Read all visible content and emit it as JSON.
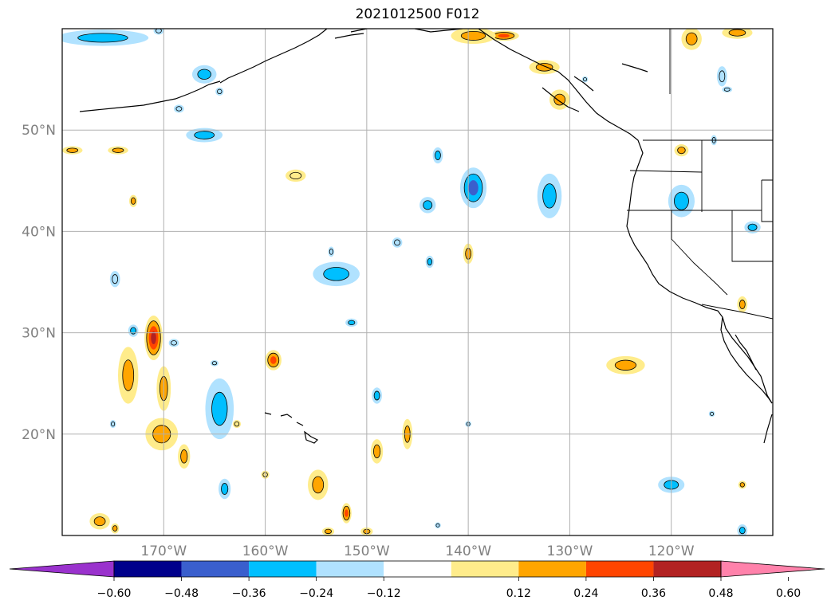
{
  "title": "2021012500 F012",
  "map": {
    "lon_range": [
      -180,
      -110
    ],
    "lat_range": [
      10,
      60
    ],
    "grid_lons": [
      -170,
      -160,
      -150,
      -140,
      -130,
      -120
    ],
    "grid_lats": [
      20,
      30,
      40,
      50
    ],
    "lat_labels": [
      "20°N",
      "30°N",
      "40°N",
      "50°N"
    ],
    "lon_labels": [
      "170°W",
      "160°W",
      "150°W",
      "140°W",
      "130°W",
      "120°W"
    ],
    "label_color": "#808080"
  },
  "colorbar": {
    "colors": [
      "#9a32cd",
      "#00008b",
      "#3a5fcd",
      "#00bfff",
      "#b0e2ff",
      "#ffffff",
      "#ffec8b",
      "#ffa500",
      "#ff4500",
      "#b22222",
      "#ff82ab"
    ],
    "tick_labels": [
      "−0.60",
      "−0.48",
      "−0.36",
      "−0.24",
      "−0.12",
      "0.12",
      "0.24",
      "0.36",
      "0.48",
      "0.60"
    ]
  },
  "features": [
    {
      "lon": -176,
      "lat": 59.1,
      "rx": 4.5,
      "ry": 0.8,
      "level": -0.3
    },
    {
      "lon": -170.5,
      "lat": 59.8,
      "rx": 0.5,
      "ry": 0.4,
      "level": -0.2
    },
    {
      "lon": -168.5,
      "lat": 52.1,
      "rx": 0.5,
      "ry": 0.4,
      "level": -0.2
    },
    {
      "lon": -166,
      "lat": 55.5,
      "rx": 1.2,
      "ry": 0.9,
      "level": -0.3
    },
    {
      "lon": -164.5,
      "lat": 53.8,
      "rx": 0.4,
      "ry": 0.4,
      "level": -0.2
    },
    {
      "lon": -166,
      "lat": 49.5,
      "rx": 1.8,
      "ry": 0.7,
      "level": -0.3
    },
    {
      "lon": -179,
      "lat": 48,
      "rx": 1.0,
      "ry": 0.4,
      "level": 0.3
    },
    {
      "lon": -174.5,
      "lat": 48,
      "rx": 1.0,
      "ry": 0.4,
      "level": 0.3
    },
    {
      "lon": -173,
      "lat": 43,
      "rx": 0.4,
      "ry": 0.6,
      "level": 0.3
    },
    {
      "lon": -157,
      "lat": 45.5,
      "rx": 1.0,
      "ry": 0.6,
      "level": 0.2
    },
    {
      "lon": -143,
      "lat": 47.5,
      "rx": 0.5,
      "ry": 0.8,
      "level": -0.3
    },
    {
      "lon": -144,
      "lat": 42.6,
      "rx": 0.8,
      "ry": 0.8,
      "level": -0.3
    },
    {
      "lon": -139.5,
      "lat": 44.3,
      "rx": 1.3,
      "ry": 2.0,
      "level": -0.4
    },
    {
      "lon": -132,
      "lat": 43.5,
      "rx": 1.2,
      "ry": 2.2,
      "level": -0.3
    },
    {
      "lon": -119,
      "lat": 43,
      "rx": 1.3,
      "ry": 1.6,
      "level": -0.35
    },
    {
      "lon": -112,
      "lat": 40.4,
      "rx": 0.8,
      "ry": 0.6,
      "level": -0.3
    },
    {
      "lon": -115,
      "lat": 55.3,
      "rx": 0.5,
      "ry": 1.0,
      "level": -0.2
    },
    {
      "lon": -114.5,
      "lat": 54,
      "rx": 0.5,
      "ry": 0.3,
      "level": -0.2
    },
    {
      "lon": -131,
      "lat": 53,
      "rx": 1.0,
      "ry": 1.0,
      "level": 0.3
    },
    {
      "lon": -119,
      "lat": 48,
      "rx": 0.7,
      "ry": 0.6,
      "level": 0.3
    },
    {
      "lon": -115.8,
      "lat": 49,
      "rx": 0.3,
      "ry": 0.5,
      "level": -0.2
    },
    {
      "lon": -136.5,
      "lat": 59.3,
      "rx": 1.5,
      "ry": 0.5,
      "level": 0.4
    },
    {
      "lon": -139.5,
      "lat": 59.3,
      "rx": 2.2,
      "ry": 0.8,
      "level": 0.3
    },
    {
      "lon": -132.5,
      "lat": 56.2,
      "rx": 1.5,
      "ry": 0.7,
      "level": 0.3
    },
    {
      "lon": -128.5,
      "lat": 55,
      "rx": 0.3,
      "ry": 0.3,
      "level": -0.2
    },
    {
      "lon": -118,
      "lat": 59,
      "rx": 1.0,
      "ry": 1.1,
      "level": 0.3
    },
    {
      "lon": -113.5,
      "lat": 59.6,
      "rx": 1.5,
      "ry": 0.6,
      "level": 0.3
    },
    {
      "lon": -153,
      "lat": 35.8,
      "rx": 2.3,
      "ry": 1.2,
      "level": -0.3
    },
    {
      "lon": -153.5,
      "lat": 38,
      "rx": 0.3,
      "ry": 0.5,
      "level": -0.2
    },
    {
      "lon": -147,
      "lat": 38.9,
      "rx": 0.5,
      "ry": 0.5,
      "level": -0.2
    },
    {
      "lon": -143.8,
      "lat": 37,
      "rx": 0.4,
      "ry": 0.6,
      "level": -0.25
    },
    {
      "lon": -140,
      "lat": 37.8,
      "rx": 0.5,
      "ry": 1.0,
      "level": 0.3
    },
    {
      "lon": -174.8,
      "lat": 35.3,
      "rx": 0.5,
      "ry": 0.8,
      "level": -0.2
    },
    {
      "lon": -173,
      "lat": 30.2,
      "rx": 0.5,
      "ry": 0.6,
      "level": -0.25
    },
    {
      "lon": -171,
      "lat": 29.5,
      "rx": 0.9,
      "ry": 2.2,
      "level": 0.55
    },
    {
      "lon": -169,
      "lat": 29,
      "rx": 0.5,
      "ry": 0.4,
      "level": -0.2
    },
    {
      "lon": -173.5,
      "lat": 25.8,
      "rx": 1.0,
      "ry": 2.8,
      "level": 0.3
    },
    {
      "lon": -170,
      "lat": 24.5,
      "rx": 0.7,
      "ry": 2.2,
      "level": 0.3
    },
    {
      "lon": -165,
      "lat": 27,
      "rx": 0.4,
      "ry": 0.3,
      "level": -0.2
    },
    {
      "lon": -164.5,
      "lat": 22.5,
      "rx": 1.4,
      "ry": 3.0,
      "level": -0.35
    },
    {
      "lon": -162.8,
      "lat": 21,
      "rx": 0.4,
      "ry": 0.4,
      "level": 0.2
    },
    {
      "lon": -170.2,
      "lat": 20,
      "rx": 1.6,
      "ry": 1.6,
      "level": 0.3
    },
    {
      "lon": -168,
      "lat": 17.8,
      "rx": 0.6,
      "ry": 1.2,
      "level": 0.3
    },
    {
      "lon": -175,
      "lat": 21,
      "rx": 0.3,
      "ry": 0.4,
      "level": -0.2
    },
    {
      "lon": -159.2,
      "lat": 27.3,
      "rx": 0.8,
      "ry": 1.0,
      "level": 0.4
    },
    {
      "lon": -151.5,
      "lat": 31,
      "rx": 0.6,
      "ry": 0.4,
      "level": -0.25
    },
    {
      "lon": -149,
      "lat": 23.8,
      "rx": 0.5,
      "ry": 0.8,
      "level": -0.3
    },
    {
      "lon": -149,
      "lat": 18.3,
      "rx": 0.6,
      "ry": 1.2,
      "level": 0.3
    },
    {
      "lon": -146,
      "lat": 20,
      "rx": 0.5,
      "ry": 1.5,
      "level": 0.3
    },
    {
      "lon": -140,
      "lat": 21,
      "rx": 0.3,
      "ry": 0.3,
      "level": -0.2
    },
    {
      "lon": -160,
      "lat": 16,
      "rx": 0.4,
      "ry": 0.4,
      "level": 0.2
    },
    {
      "lon": -154.8,
      "lat": 15,
      "rx": 1.0,
      "ry": 1.5,
      "level": 0.35
    },
    {
      "lon": -164,
      "lat": 14.6,
      "rx": 0.6,
      "ry": 1.0,
      "level": -0.3
    },
    {
      "lon": -152,
      "lat": 12.2,
      "rx": 0.5,
      "ry": 1.0,
      "level": 0.4
    },
    {
      "lon": -153.8,
      "lat": 10.4,
      "rx": 0.6,
      "ry": 0.4,
      "level": 0.3
    },
    {
      "lon": -150,
      "lat": 10.4,
      "rx": 0.6,
      "ry": 0.4,
      "level": 0.3
    },
    {
      "lon": -143,
      "lat": 11,
      "rx": 0.3,
      "ry": 0.3,
      "level": -0.2
    },
    {
      "lon": -176.3,
      "lat": 11.4,
      "rx": 1.0,
      "ry": 0.8,
      "level": 0.3
    },
    {
      "lon": -174.8,
      "lat": 10.7,
      "rx": 0.4,
      "ry": 0.5,
      "level": 0.3
    },
    {
      "lon": -124.5,
      "lat": 26.8,
      "rx": 1.9,
      "ry": 0.9,
      "level": 0.3
    },
    {
      "lon": -116,
      "lat": 22,
      "rx": 0.3,
      "ry": 0.3,
      "level": -0.2
    },
    {
      "lon": -120,
      "lat": 15,
      "rx": 1.3,
      "ry": 0.8,
      "level": -0.3
    },
    {
      "lon": -113,
      "lat": 15,
      "rx": 0.4,
      "ry": 0.4,
      "level": 0.3
    },
    {
      "lon": -113,
      "lat": 10.5,
      "rx": 0.5,
      "ry": 0.6,
      "level": -0.3
    },
    {
      "lon": -113,
      "lat": 32.8,
      "rx": 0.5,
      "ry": 0.8,
      "level": 0.3
    }
  ]
}
